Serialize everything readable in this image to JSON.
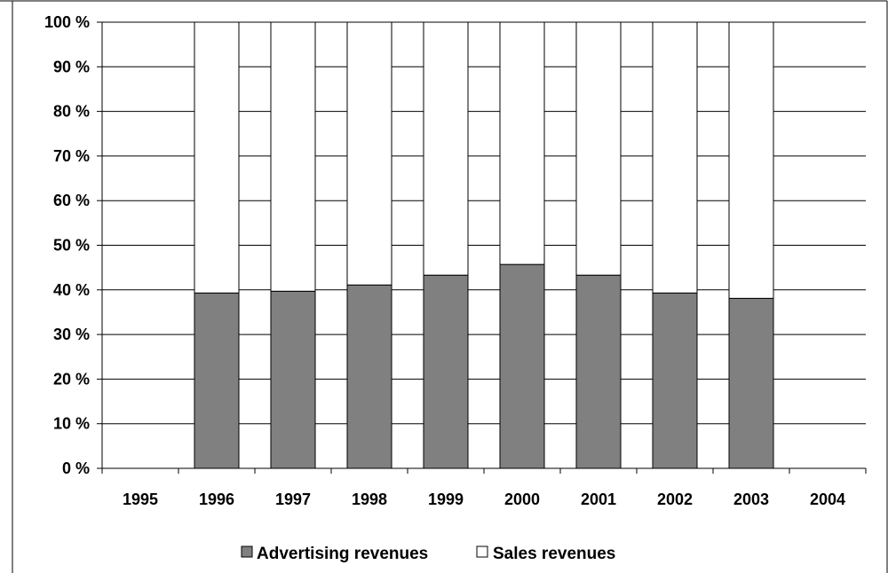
{
  "chart_data": {
    "type": "bar",
    "stacked": true,
    "percent_stacked": true,
    "categories": [
      "1995",
      "1996",
      "1997",
      "1998",
      "1999",
      "2000",
      "2001",
      "2002",
      "2003",
      "2004"
    ],
    "series": [
      {
        "name": "Advertising revenues",
        "color": "#808080",
        "values": [
          null,
          39.3,
          39.7,
          41.1,
          43.3,
          45.7,
          43.3,
          39.3,
          38.1,
          null
        ]
      },
      {
        "name": "Sales revenues",
        "color": "#ffffff",
        "values": [
          null,
          60.7,
          60.3,
          58.9,
          56.7,
          54.3,
          56.7,
          60.7,
          61.9,
          null
        ]
      }
    ],
    "yticks": [
      "0 %",
      "10 %",
      "20 %",
      "30 %",
      "40 %",
      "50 %",
      "60 %",
      "70 %",
      "80 %",
      "90 %",
      "100 %"
    ],
    "ylim": [
      0,
      100
    ],
    "grid": true,
    "legend_position": "bottom"
  }
}
